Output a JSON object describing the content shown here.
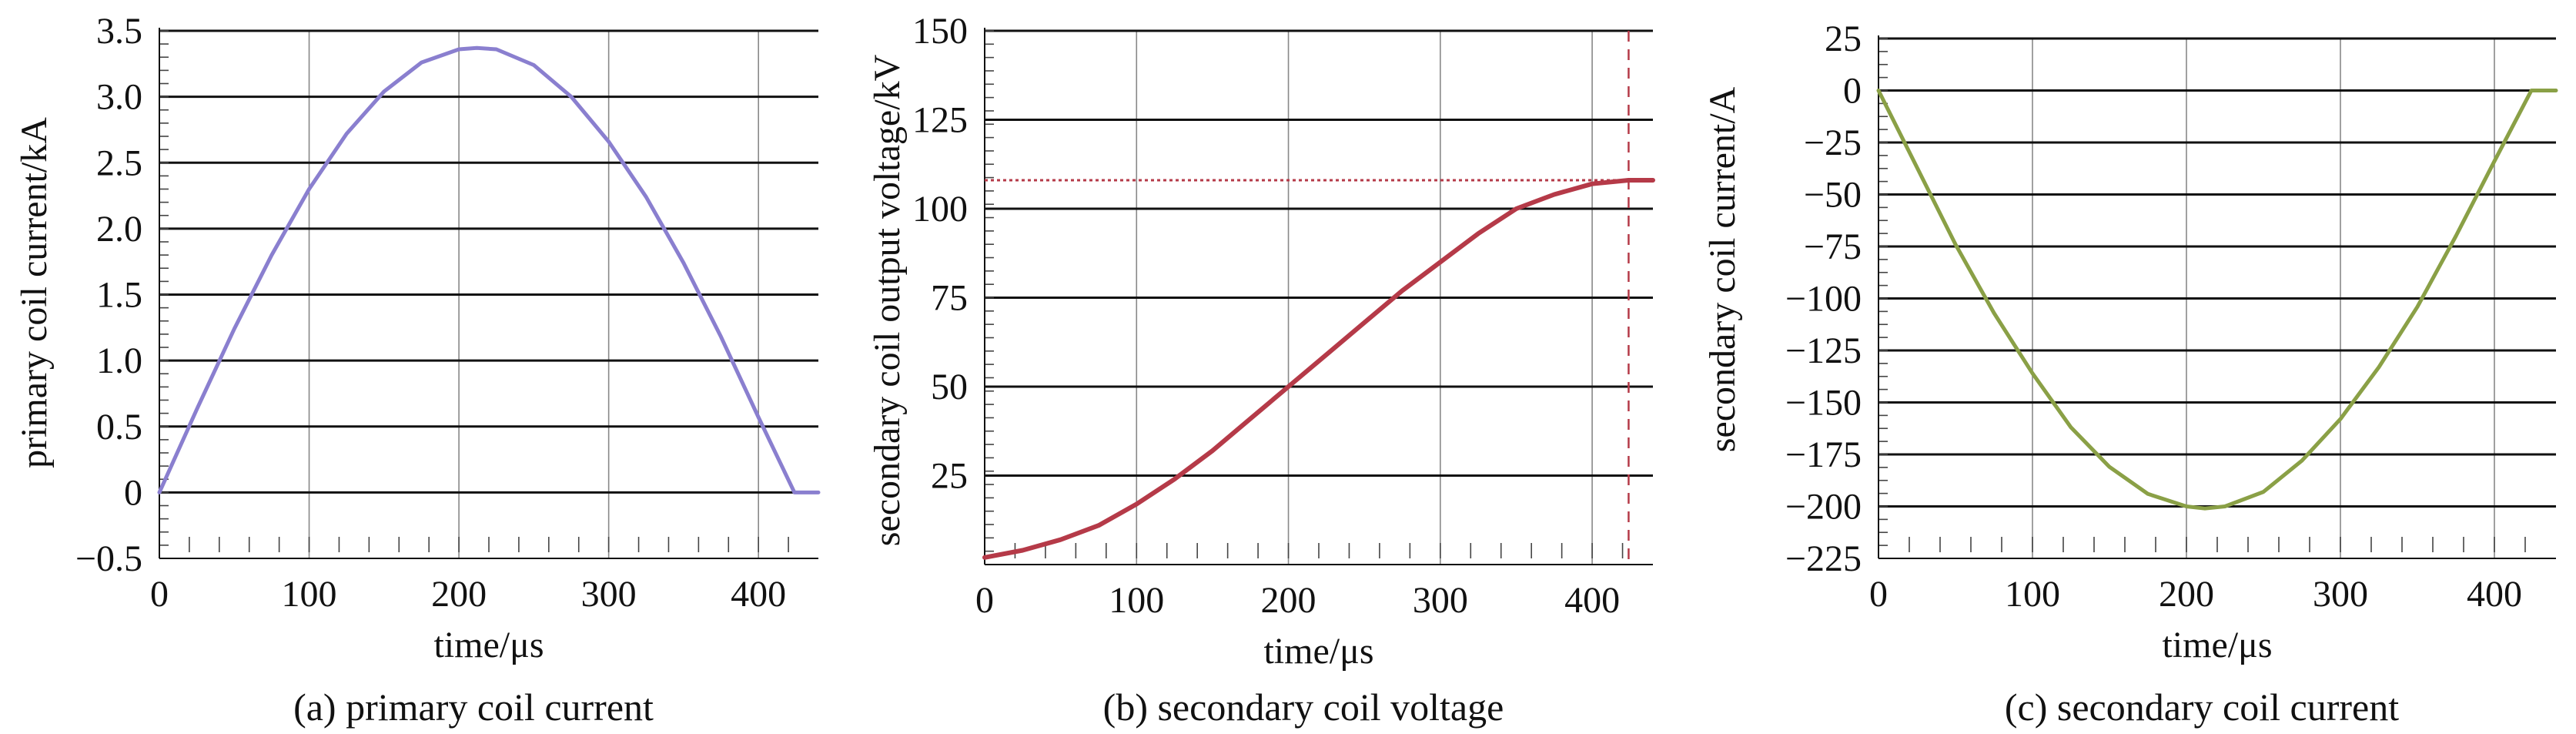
{
  "chart_data": [
    {
      "type": "line",
      "caption": "(a) primary coil current",
      "xlabel": "time/μs",
      "ylabel": "primary coil current/kA",
      "xlim": [
        0,
        440
      ],
      "ylim": [
        -0.5,
        3.5
      ],
      "xticks": [
        "0",
        "100",
        "200",
        "300",
        "400"
      ],
      "yticks": [
        "−0.5",
        "0",
        "0.5",
        "1.0",
        "1.5",
        "2.0",
        "2.5",
        "3.0",
        "3.5"
      ],
      "grid": true,
      "color": "#8a7fcf",
      "series": [
        {
          "x": [
            0,
            25,
            50,
            75,
            100,
            125,
            150,
            175,
            200,
            212,
            225,
            250,
            275,
            300,
            325,
            350,
            375,
            400,
            424,
            440
          ],
          "y": [
            0,
            0.63,
            1.24,
            1.8,
            2.3,
            2.72,
            3.04,
            3.26,
            3.36,
            3.37,
            3.36,
            3.24,
            3.0,
            2.66,
            2.24,
            1.74,
            1.18,
            0.57,
            0,
            0
          ]
        }
      ]
    },
    {
      "type": "line",
      "caption": "(b) secondary coil voltage",
      "xlabel": "time/μs",
      "ylabel": "secondary coil output voltage/kV",
      "xlim": [
        0,
        440
      ],
      "ylim": [
        0,
        150
      ],
      "xticks": [
        "0",
        "100",
        "200",
        "300",
        "400"
      ],
      "yticks": [
        "25",
        "50",
        "75",
        "100",
        "125",
        "150"
      ],
      "grid": true,
      "color": "#b53a48",
      "reference_value": 108,
      "reference_time": 424,
      "series": [
        {
          "x": [
            0,
            25,
            50,
            75,
            100,
            125,
            150,
            175,
            200,
            225,
            250,
            275,
            300,
            325,
            350,
            375,
            400,
            424,
            440
          ],
          "y": [
            2,
            4,
            7,
            11,
            17,
            24,
            32,
            41,
            50,
            59,
            68,
            77,
            85,
            93,
            100,
            104,
            107,
            108,
            108
          ]
        }
      ]
    },
    {
      "type": "line",
      "caption": "(c) secondary coil current",
      "xlabel": "time/μs",
      "ylabel": "secondary coil current/A",
      "xlim": [
        0,
        440
      ],
      "ylim": [
        -225,
        25
      ],
      "xticks": [
        "0",
        "100",
        "200",
        "300",
        "400"
      ],
      "yticks": [
        "25",
        "0",
        "−25",
        "−50",
        "−75",
        "−100",
        "−125",
        "−150",
        "−175",
        "−200",
        "−225"
      ],
      "grid": true,
      "color": "#8aa046",
      "series": [
        {
          "x": [
            0,
            25,
            50,
            75,
            100,
            125,
            150,
            175,
            200,
            212,
            225,
            250,
            275,
            300,
            325,
            350,
            375,
            400,
            424,
            440
          ],
          "y": [
            0,
            -37,
            -74,
            -107,
            -136,
            -162,
            -181,
            -194,
            -200,
            -201,
            -200,
            -193,
            -178,
            -158,
            -133,
            -104,
            -70,
            -34,
            0,
            0
          ]
        }
      ]
    }
  ]
}
